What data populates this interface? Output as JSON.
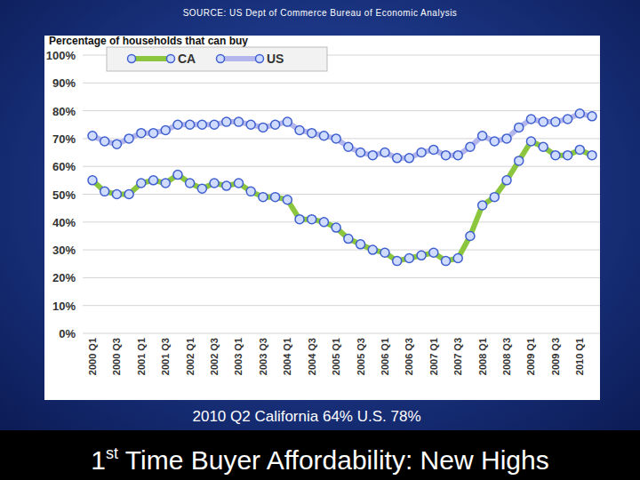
{
  "chart_data": {
    "type": "line",
    "title": "1st Time Buyer Affordability: New Highs",
    "subtitle": "SOURCE: US Dept of Commerce Bureau of Economic Analysis",
    "y_label": "Percentage of households that can buy",
    "annotation": "2010 Q2 California 64% U.S. 78%",
    "categories": [
      "2000 Q1",
      null,
      "2000 Q3",
      null,
      "2001 Q1",
      null,
      "2001 Q3",
      null,
      "2002 Q1",
      null,
      "2002 Q3",
      null,
      "2003 Q1",
      null,
      "2003 Q3",
      null,
      "2004 Q1",
      null,
      "2004 Q3",
      null,
      "2005 Q1",
      null,
      "2005 Q3",
      null,
      "2006 Q1",
      null,
      "2006 Q3",
      null,
      "2007 Q1",
      null,
      "2007 Q3",
      null,
      "2008 Q1",
      null,
      "2008 Q3",
      null,
      "2009 Q1",
      null,
      "2009 Q3",
      null,
      "2010 Q1",
      null
    ],
    "series": [
      {
        "name": "CA",
        "color": "#8cc63f",
        "marker": "circle",
        "line_style": "solid",
        "values": [
          55,
          51,
          50,
          50,
          54,
          55,
          54,
          57,
          54,
          52,
          54,
          53,
          54,
          51,
          49,
          49,
          48,
          41,
          41,
          40,
          38,
          34,
          32,
          30,
          29,
          26,
          27,
          28,
          29,
          26,
          27,
          35,
          46,
          49,
          55,
          62,
          69,
          67,
          64,
          64,
          66,
          64
        ]
      },
      {
        "name": "US",
        "color": "#b3b6ec",
        "marker": "circle",
        "line_style": "solid",
        "values": [
          71,
          69,
          68,
          70,
          72,
          72,
          73,
          75,
          75,
          75,
          75,
          76,
          76,
          75,
          74,
          75,
          76,
          73,
          72,
          71,
          70,
          67,
          65,
          64,
          65,
          63,
          63,
          65,
          66,
          64,
          64,
          67,
          71,
          69,
          70,
          74,
          77,
          76,
          76,
          77,
          79,
          78
        ]
      }
    ],
    "ylim": [
      0,
      100
    ],
    "yticks": [
      {
        "value": 0,
        "label": "0%"
      },
      {
        "value": 10,
        "label": "10%"
      },
      {
        "value": 20,
        "label": "20%"
      },
      {
        "value": 30,
        "label": "30%"
      },
      {
        "value": 40,
        "label": "40%"
      },
      {
        "value": 50,
        "label": "50%"
      },
      {
        "value": 60,
        "label": "60%"
      },
      {
        "value": 70,
        "label": "70%"
      },
      {
        "value": 80,
        "label": "80%"
      },
      {
        "value": 90,
        "label": "90%"
      },
      {
        "value": 100,
        "label": "100%"
      }
    ],
    "grid": true,
    "legend": "top-left"
  }
}
